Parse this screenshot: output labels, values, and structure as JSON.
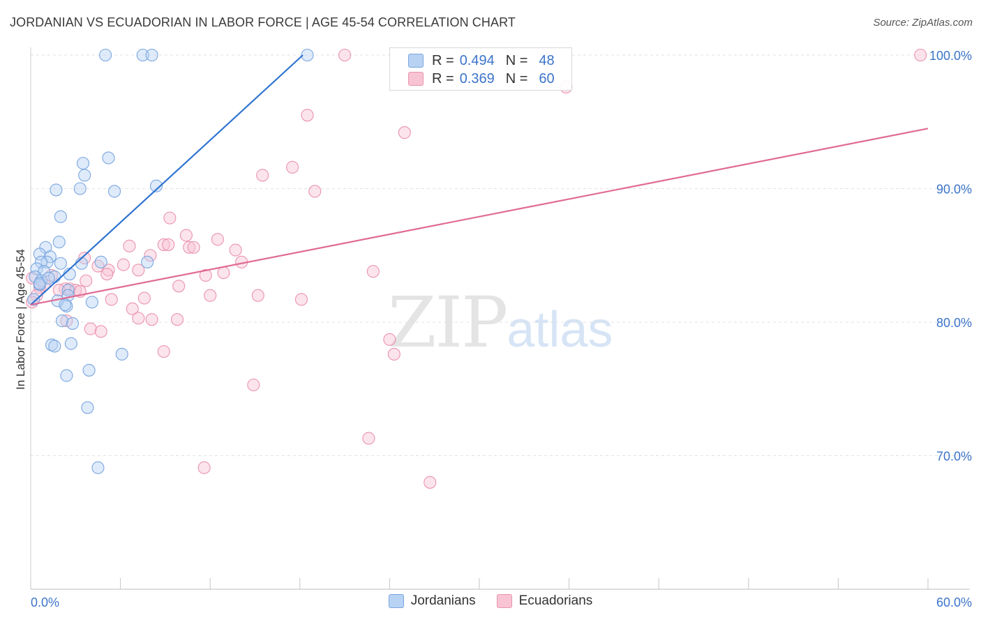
{
  "title": "JORDANIAN VS ECUADORIAN IN LABOR FORCE | AGE 45-54 CORRELATION CHART",
  "source": "Source: ZipAtlas.com",
  "watermark": {
    "zip": "ZIP",
    "atlas": "atlas"
  },
  "legend_top": [
    {
      "r_label": "R =",
      "r_value": "0.494",
      "n_label": "N =",
      "n_value": "48"
    },
    {
      "r_label": "R =",
      "r_value": "0.369",
      "n_label": "N =",
      "n_value": "60"
    }
  ],
  "chart_data": {
    "type": "scatter",
    "title": "JORDANIAN VS ECUADORIAN IN LABOR FORCE | AGE 45-54 CORRELATION CHART",
    "xlabel": "",
    "ylabel": "In Labor Force | Age 45-54",
    "xlim": [
      0,
      60
    ],
    "ylim": [
      60,
      100
    ],
    "x_tick_labels": [
      "0.0%",
      "60.0%"
    ],
    "y_ticks": [
      70,
      80,
      90,
      100
    ],
    "y_tick_labels": [
      "70.0%",
      "80.0%",
      "90.0%",
      "100.0%"
    ],
    "grid": "horizontal dashed",
    "legend_position": "bottom",
    "colors": {
      "Jordanians": "#7aa6e0",
      "Ecuadorians": "#ea93ae",
      "Jordanians_line": "#2f74d0",
      "Ecuadorians_line": "#e06a93",
      "axis_labels": "#3b74c9"
    },
    "series": [
      {
        "name": "Jordanians",
        "R": 0.494,
        "N": 48,
        "trend": {
          "x": [
            0.0,
            18.2
          ],
          "y": [
            81.3,
            100.0
          ]
        },
        "points": [
          [
            5.0,
            100.0
          ],
          [
            7.5,
            100.0
          ],
          [
            8.1,
            100.0
          ],
          [
            18.5,
            100.0
          ],
          [
            5.2,
            92.3
          ],
          [
            3.5,
            91.9
          ],
          [
            3.6,
            91.0
          ],
          [
            1.7,
            89.9
          ],
          [
            3.3,
            90.0
          ],
          [
            5.6,
            89.8
          ],
          [
            8.4,
            90.2
          ],
          [
            2.0,
            87.9
          ],
          [
            1.9,
            86.0
          ],
          [
            1.0,
            85.6
          ],
          [
            0.6,
            85.1
          ],
          [
            1.3,
            84.9
          ],
          [
            1.1,
            84.5
          ],
          [
            0.7,
            84.5
          ],
          [
            2.0,
            84.4
          ],
          [
            3.4,
            84.4
          ],
          [
            4.7,
            84.5
          ],
          [
            7.8,
            84.5
          ],
          [
            0.4,
            84.0
          ],
          [
            0.9,
            83.8
          ],
          [
            0.3,
            83.4
          ],
          [
            1.6,
            83.4
          ],
          [
            2.6,
            83.6
          ],
          [
            0.7,
            83.1
          ],
          [
            0.6,
            82.8
          ],
          [
            2.5,
            82.4
          ],
          [
            2.5,
            82.0
          ],
          [
            0.2,
            81.7
          ],
          [
            1.8,
            81.6
          ],
          [
            4.1,
            81.5
          ],
          [
            2.4,
            81.2
          ],
          [
            2.3,
            81.3
          ],
          [
            2.1,
            80.1
          ],
          [
            2.8,
            79.9
          ],
          [
            2.7,
            78.4
          ],
          [
            1.4,
            78.3
          ],
          [
            1.6,
            78.2
          ],
          [
            6.1,
            77.6
          ],
          [
            3.9,
            76.4
          ],
          [
            2.4,
            76.0
          ],
          [
            3.8,
            73.6
          ],
          [
            4.5,
            69.1
          ],
          [
            0.6,
            82.9
          ],
          [
            1.2,
            83.3
          ]
        ]
      },
      {
        "name": "Ecuadorians",
        "R": 0.369,
        "N": 60,
        "trend": {
          "x": [
            0.0,
            60.0
          ],
          "y": [
            81.3,
            94.5
          ]
        },
        "points": [
          [
            21.0,
            100.0
          ],
          [
            59.5,
            100.0
          ],
          [
            35.8,
            97.6
          ],
          [
            18.5,
            95.5
          ],
          [
            25.0,
            94.2
          ],
          [
            17.5,
            91.6
          ],
          [
            15.5,
            91.0
          ],
          [
            19.0,
            89.8
          ],
          [
            9.3,
            87.8
          ],
          [
            10.4,
            86.5
          ],
          [
            12.5,
            86.2
          ],
          [
            6.6,
            85.7
          ],
          [
            8.9,
            85.8
          ],
          [
            9.2,
            85.8
          ],
          [
            10.6,
            85.6
          ],
          [
            10.9,
            85.6
          ],
          [
            13.7,
            85.4
          ],
          [
            8.0,
            85.0
          ],
          [
            3.6,
            84.8
          ],
          [
            14.1,
            84.5
          ],
          [
            4.5,
            84.2
          ],
          [
            6.2,
            84.3
          ],
          [
            5.2,
            83.9
          ],
          [
            7.2,
            83.9
          ],
          [
            5.1,
            83.6
          ],
          [
            12.9,
            83.7
          ],
          [
            22.9,
            83.8
          ],
          [
            11.7,
            83.5
          ],
          [
            0.1,
            83.3
          ],
          [
            1.4,
            83.5
          ],
          [
            3.7,
            83.1
          ],
          [
            0.6,
            82.6
          ],
          [
            0.9,
            82.8
          ],
          [
            2.3,
            82.5
          ],
          [
            2.6,
            82.5
          ],
          [
            3.0,
            82.4
          ],
          [
            3.3,
            82.3
          ],
          [
            1.9,
            82.4
          ],
          [
            9.9,
            82.7
          ],
          [
            12.0,
            82.0
          ],
          [
            15.2,
            82.0
          ],
          [
            7.6,
            81.8
          ],
          [
            18.1,
            81.7
          ],
          [
            5.4,
            81.7
          ],
          [
            0.4,
            82.0
          ],
          [
            0.1,
            81.5
          ],
          [
            6.8,
            81.0
          ],
          [
            7.2,
            80.3
          ],
          [
            8.1,
            80.2
          ],
          [
            9.8,
            80.2
          ],
          [
            2.4,
            80.1
          ],
          [
            4.0,
            79.5
          ],
          [
            4.7,
            79.3
          ],
          [
            24.0,
            78.7
          ],
          [
            24.3,
            77.6
          ],
          [
            8.9,
            77.8
          ],
          [
            14.9,
            75.3
          ],
          [
            22.6,
            71.3
          ],
          [
            11.6,
            69.1
          ],
          [
            26.7,
            68.0
          ]
        ]
      }
    ]
  }
}
